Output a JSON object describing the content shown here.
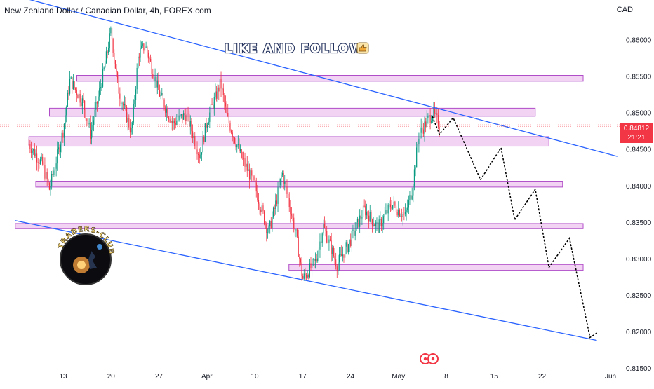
{
  "header": {
    "title": "New Zealand Dollar / Canadian Dollar, 4h, FOREX.com",
    "currency": "CAD"
  },
  "banner": {
    "text": "LIKE AND FOLLOW",
    "icon": "thumbs-up-icon"
  },
  "logo": {
    "text": "TRADERS-CLUB"
  },
  "price_badge": {
    "price": "0.84812",
    "countdown": "21:21"
  },
  "colors": {
    "up": "#089981",
    "down": "#f23645",
    "zone_fill": "#f3d3f3",
    "zone_border": "#b04cc8",
    "trendline": "#2962ff",
    "projection": "#000000",
    "badge": "#f23645"
  },
  "chart_data": {
    "type": "candlestick",
    "symbol": "NZDCAD",
    "timeframe": "4h",
    "y_axis": {
      "ticks": [
        "0.86000",
        "0.85500",
        "0.85000",
        "0.84500",
        "0.84000",
        "0.83500",
        "0.83000",
        "0.82500",
        "0.82000",
        "0.81500"
      ],
      "ylim": [
        0.8155,
        0.8635
      ]
    },
    "x_axis": {
      "ticks": [
        "13",
        "20",
        "27",
        "Apr",
        "10",
        "17",
        "24",
        "May",
        "8",
        "15",
        "22",
        "Jun"
      ]
    },
    "price_path": [
      {
        "date": "Mar 8",
        "price": 0.8457
      },
      {
        "date": "Mar 10",
        "price": 0.8428
      },
      {
        "date": "Mar 11",
        "price": 0.8395
      },
      {
        "date": "Mar 13",
        "price": 0.8475
      },
      {
        "date": "Mar 14",
        "price": 0.8545
      },
      {
        "date": "Mar 16",
        "price": 0.8512
      },
      {
        "date": "Mar 17",
        "price": 0.847
      },
      {
        "date": "Mar 19",
        "price": 0.856
      },
      {
        "date": "Mar 20",
        "price": 0.8612
      },
      {
        "date": "Mar 21",
        "price": 0.8535
      },
      {
        "date": "Mar 23",
        "price": 0.8472
      },
      {
        "date": "Mar 24",
        "price": 0.858
      },
      {
        "date": "Mar 25",
        "price": 0.8592
      },
      {
        "date": "Mar 27",
        "price": 0.8528
      },
      {
        "date": "Mar 29",
        "price": 0.8485
      },
      {
        "date": "Mar 31",
        "price": 0.8498
      },
      {
        "date": "Apr 2",
        "price": 0.844
      },
      {
        "date": "Apr 3",
        "price": 0.8488
      },
      {
        "date": "Apr 5",
        "price": 0.854
      },
      {
        "date": "Apr 6",
        "price": 0.8492
      },
      {
        "date": "Apr 8",
        "price": 0.844
      },
      {
        "date": "Apr 10",
        "price": 0.84
      },
      {
        "date": "Apr 12",
        "price": 0.8335
      },
      {
        "date": "Apr 13",
        "price": 0.8372
      },
      {
        "date": "Apr 14",
        "price": 0.8418
      },
      {
        "date": "Apr 16",
        "price": 0.8335
      },
      {
        "date": "Apr 17",
        "price": 0.8272
      },
      {
        "date": "Apr 19",
        "price": 0.8298
      },
      {
        "date": "Apr 20",
        "price": 0.8345
      },
      {
        "date": "Apr 22",
        "price": 0.8292
      },
      {
        "date": "Apr 24",
        "price": 0.8325
      },
      {
        "date": "Apr 26",
        "price": 0.8368
      },
      {
        "date": "Apr 28",
        "price": 0.8342
      },
      {
        "date": "Apr 30",
        "price": 0.8375
      },
      {
        "date": "May 2",
        "price": 0.8358
      },
      {
        "date": "May 3",
        "price": 0.8395
      },
      {
        "date": "May 4",
        "price": 0.847
      },
      {
        "date": "May 6",
        "price": 0.85
      },
      {
        "date": "May 7",
        "price": 0.8483
      }
    ],
    "zones": [
      {
        "date_start": "Mar 15",
        "date_end": "May 28",
        "price_low": 0.8543,
        "price_high": 0.8551
      },
      {
        "date_start": "Mar 11",
        "date_end": "May 21",
        "price_low": 0.8495,
        "price_high": 0.8506
      },
      {
        "date_start": "Mar 8",
        "date_end": "May 23",
        "price_low": 0.8454,
        "price_high": 0.8467
      },
      {
        "date_start": "Mar 9",
        "date_end": "May 25",
        "price_low": 0.8398,
        "price_high": 0.8406
      },
      {
        "date_start": "Mar 6",
        "date_end": "May 28",
        "price_low": 0.8341,
        "price_high": 0.8348
      },
      {
        "date_start": "Apr 15",
        "date_end": "May 28",
        "price_low": 0.8284,
        "price_high": 0.8292
      }
    ],
    "trendlines": [
      {
        "name": "upper",
        "points": [
          {
            "date": "Mar 6",
            "price": 0.866
          },
          {
            "date": "Jun 2",
            "price": 0.844
          }
        ]
      },
      {
        "name": "lower",
        "points": [
          {
            "date": "Mar 6",
            "price": 0.8352
          },
          {
            "date": "May 30",
            "price": 0.8188
          }
        ]
      }
    ],
    "projection": [
      {
        "date": "May 6",
        "price": 0.8494
      },
      {
        "date": "May 7",
        "price": 0.847
      },
      {
        "date": "May 9",
        "price": 0.8493
      },
      {
        "date": "May 13",
        "price": 0.8408
      },
      {
        "date": "May 16",
        "price": 0.8452
      },
      {
        "date": "May 18",
        "price": 0.8353
      },
      {
        "date": "May 21",
        "price": 0.8395
      },
      {
        "date": "May 23",
        "price": 0.8288
      },
      {
        "date": "May 26",
        "price": 0.8328
      },
      {
        "date": "May 29",
        "price": 0.8192
      },
      {
        "date": "May 30",
        "price": 0.8198
      }
    ]
  }
}
